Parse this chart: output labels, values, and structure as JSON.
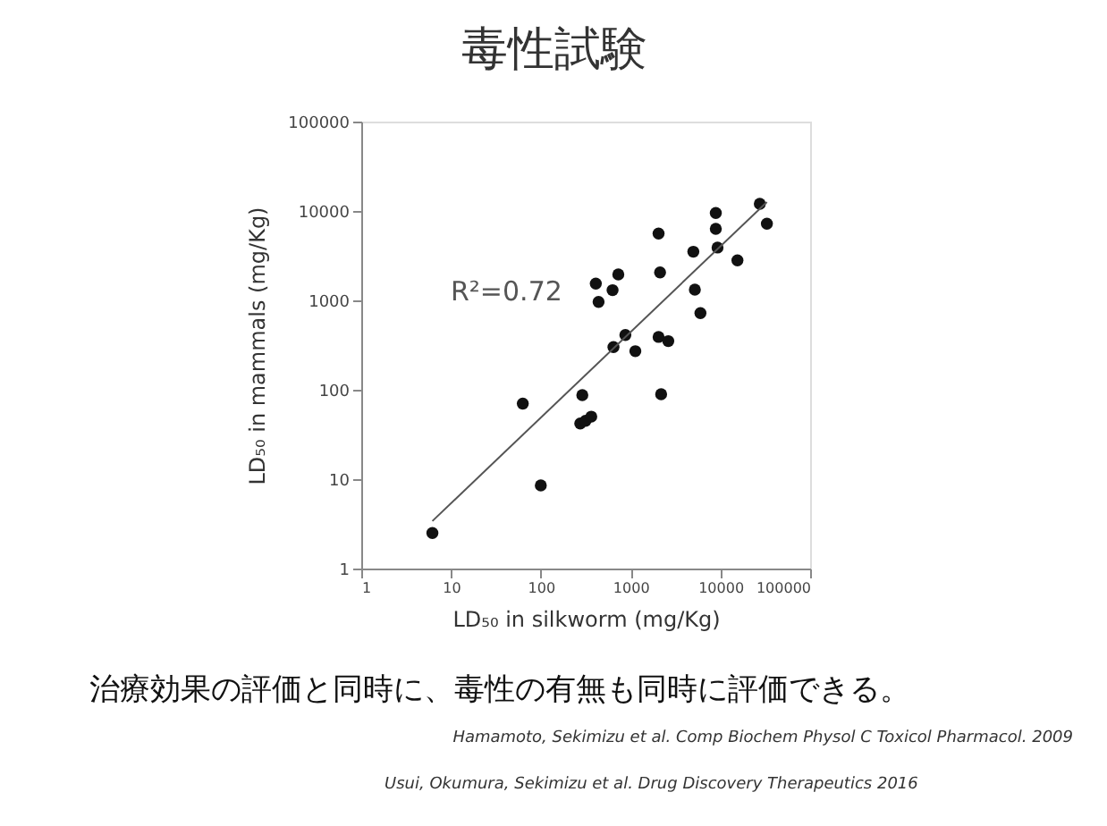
{
  "chart_data": {
    "type": "scatter",
    "title": "毒性試験",
    "xlabel": "LD₅₀ in silkworm (mg/Kg)",
    "ylabel": "LD₅₀ in mammals (mg/Kg)",
    "log": "xy",
    "marker": "circle",
    "xlim": [
      1,
      100000
    ],
    "xticks": [
      1,
      10,
      100,
      1000,
      10000,
      100000
    ],
    "ylim": [
      1,
      100000
    ],
    "yticks": [
      1,
      10,
      100,
      1000,
      10000,
      100000
    ],
    "series": [
      {
        "color": "#111111",
        "x": [
          6.2,
          63,
          100,
          290,
          275,
          315,
          365,
          410,
          440,
          630,
          730,
          645,
          875,
          1130,
          2050,
          2130,
          2050,
          2190,
          2630,
          5000,
          5200,
          6000,
          8900,
          8900,
          9300,
          15500,
          27500,
          33000
        ],
        "values": [
          2.5,
          70,
          8.5,
          87,
          42,
          45,
          50,
          1540,
          960,
          1300,
          1950,
          300,
          410,
          270,
          5600,
          2050,
          390,
          89,
          350,
          3500,
          1320,
          720,
          9500,
          6300,
          3900,
          2800,
          12000,
          7200
        ]
      },
      {
        "type": "line",
        "marker": "none",
        "color": "#555555",
        "x": [
          6.2,
          33000
        ],
        "values": [
          3.4,
          12600
        ]
      }
    ],
    "annotations": [
      "R²=0.72",
      "治療効果の評価と同時に、毒性の有無も同時に評価できる。",
      "Hamamoto, Sekimizu et al. Comp Biochem Physol C Toxicol Pharmacol. 2009",
      "Usui, Okumura, Sekimizu et al. Drug Discovery Therapeutics 2016"
    ]
  }
}
